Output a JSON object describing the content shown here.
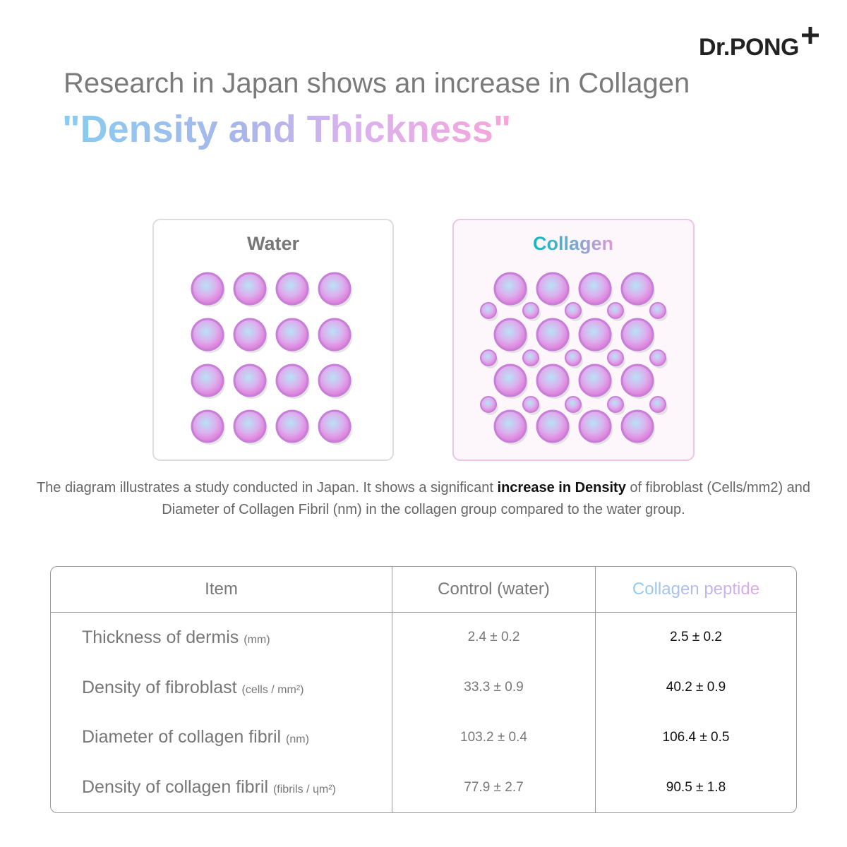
{
  "brand": {
    "logo": "Dr.PONG"
  },
  "header": {
    "title": "Research in Japan shows an increase in Collagen",
    "headline": "\"Density and Thickness\""
  },
  "panels": [
    {
      "label": "Water"
    },
    {
      "label": "Collagen"
    }
  ],
  "description": {
    "parts": [
      "The diagram illustrates a study conducted in Japan. It shows a significant ",
      "increase in Density",
      " of fibroblast (Cells/mm2) and Diameter of Collagen Fibril (nm) in the collagen group compared to the water group."
    ]
  },
  "table": {
    "header": [
      "Item",
      "Control (water)",
      "Collagen peptide"
    ],
    "rows": [
      {
        "item": "Thickness of dermis",
        "unit": "(mm)",
        "control": "2.4 ± 0.2",
        "collagen": "2.5 ± 0.2"
      },
      {
        "item": "Density of fibroblast",
        "unit": "(cells / mm²)",
        "control": "33.3 ± 0.9",
        "collagen": "40.2 ± 0.9"
      },
      {
        "item": "Diameter of collagen fibril",
        "unit": "(nm)",
        "control": "103.2 ± 0.4",
        "collagen": "106.4 ± 0.5"
      },
      {
        "item": "Density of collagen fibril",
        "unit": "(fibrils / ɥm²)",
        "control": "77.9 ± 2.7",
        "collagen": "90.5 ± 1.8"
      }
    ]
  }
}
